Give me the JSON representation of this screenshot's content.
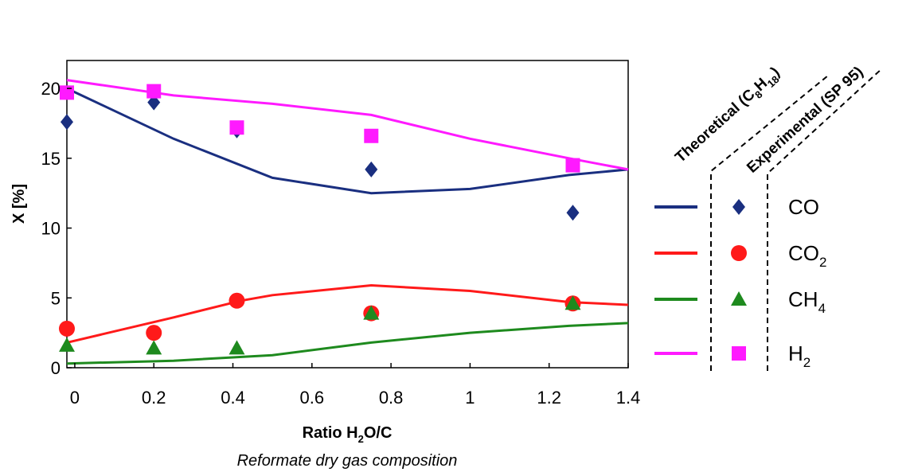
{
  "chart_data": {
    "type": "line",
    "caption": "Reformate dry gas composition",
    "xlabel": {
      "main": "Ratio H",
      "sub": "2",
      "rest": "O/C"
    },
    "ylabel": "X [%]",
    "xlim": [
      -0.02,
      1.4
    ],
    "ylim": [
      0,
      22
    ],
    "xticks": [
      "0",
      "0.2",
      "0.4",
      "0.6",
      "0.8",
      "1",
      "1.2",
      "1.4"
    ],
    "xtick_values": [
      0,
      0.2,
      0.4,
      0.6,
      0.8,
      1.0,
      1.2,
      1.4
    ],
    "yticks": [
      "0",
      "5",
      "10",
      "15",
      "20"
    ],
    "ytick_values": [
      0,
      5,
      10,
      15,
      20
    ],
    "grid": false,
    "legend_headers": {
      "theoretical": {
        "main": "Theoretical (C",
        "s1": "8",
        "mid": "H",
        "s2": "18",
        "end": ")"
      },
      "experimental": "Experimental (SP 95)"
    },
    "series": [
      {
        "name": "CO",
        "label_main": "CO",
        "label_sub": "",
        "color": "#1a2f80",
        "marker": "diamond",
        "theoretical": {
          "x": [
            -0.02,
            0.25,
            0.5,
            0.75,
            1.0,
            1.25,
            1.4
          ],
          "y": [
            20.0,
            16.4,
            13.6,
            12.5,
            12.8,
            13.8,
            14.2
          ]
        },
        "experimental": {
          "x": [
            -0.02,
            0.2,
            0.41,
            0.75,
            1.26
          ],
          "y": [
            17.6,
            19.0,
            17.0,
            14.2,
            11.1
          ]
        }
      },
      {
        "name": "CO2",
        "label_main": "CO",
        "label_sub": "2",
        "color": "#ff1a1a",
        "marker": "circle",
        "theoretical": {
          "x": [
            -0.02,
            0.25,
            0.42,
            0.5,
            0.75,
            1.0,
            1.25,
            1.4
          ],
          "y": [
            1.8,
            3.6,
            4.8,
            5.2,
            5.9,
            5.5,
            4.7,
            4.5
          ]
        },
        "experimental": {
          "x": [
            -0.02,
            0.2,
            0.41,
            0.75,
            1.26
          ],
          "y": [
            2.8,
            2.5,
            4.8,
            3.9,
            4.6
          ]
        }
      },
      {
        "name": "CH4",
        "label_main": "CH",
        "label_sub": "4",
        "color": "#1e8a1e",
        "marker": "triangle",
        "theoretical": {
          "x": [
            -0.02,
            0.25,
            0.5,
            0.75,
            1.0,
            1.25,
            1.4
          ],
          "y": [
            0.3,
            0.5,
            0.9,
            1.8,
            2.5,
            3.0,
            3.2
          ]
        },
        "experimental": {
          "x": [
            -0.02,
            0.2,
            0.41,
            0.75,
            1.26
          ],
          "y": [
            1.6,
            1.4,
            1.4,
            3.9,
            4.6
          ]
        }
      },
      {
        "name": "H2",
        "label_main": "H",
        "label_sub": "2",
        "color": "#ff1aff",
        "marker": "square",
        "theoretical": {
          "x": [
            -0.02,
            0.25,
            0.5,
            0.75,
            1.0,
            1.25,
            1.4
          ],
          "y": [
            20.6,
            19.5,
            18.9,
            18.1,
            16.4,
            15.0,
            14.2
          ]
        },
        "experimental": {
          "x": [
            -0.02,
            0.2,
            0.41,
            0.75,
            1.26
          ],
          "y": [
            19.7,
            19.8,
            17.2,
            16.6,
            14.5
          ]
        }
      }
    ]
  }
}
